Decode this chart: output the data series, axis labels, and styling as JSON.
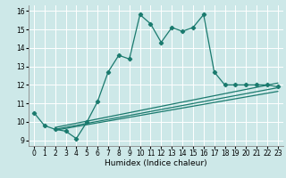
{
  "xlabel": "Humidex (Indice chaleur)",
  "xlim": [
    -0.5,
    23.5
  ],
  "ylim": [
    8.7,
    16.3
  ],
  "xticks": [
    0,
    1,
    2,
    3,
    4,
    5,
    6,
    7,
    8,
    9,
    10,
    11,
    12,
    13,
    14,
    15,
    16,
    17,
    18,
    19,
    20,
    21,
    22,
    23
  ],
  "yticks": [
    9,
    10,
    11,
    12,
    13,
    14,
    15,
    16
  ],
  "bg_color": "#cde8e8",
  "line_color": "#1a7a6e",
  "main_line_x": [
    0,
    1,
    2,
    3,
    4,
    5,
    6,
    7,
    8,
    9,
    10,
    11,
    12,
    13,
    14,
    15,
    16,
    17,
    18,
    19,
    20,
    21,
    22,
    23
  ],
  "main_line_y": [
    10.5,
    9.8,
    9.6,
    9.5,
    9.1,
    10.0,
    11.1,
    12.7,
    13.6,
    13.4,
    15.8,
    15.3,
    14.3,
    15.1,
    14.9,
    15.1,
    15.8,
    12.7,
    12.0,
    12.0,
    12.0,
    12.0,
    12.0,
    11.9
  ],
  "trend_lines": [
    {
      "x": [
        2,
        23
      ],
      "y": [
        9.7,
        12.1
      ]
    },
    {
      "x": [
        2,
        23
      ],
      "y": [
        9.6,
        11.85
      ]
    },
    {
      "x": [
        2,
        23
      ],
      "y": [
        9.55,
        11.65
      ]
    }
  ]
}
